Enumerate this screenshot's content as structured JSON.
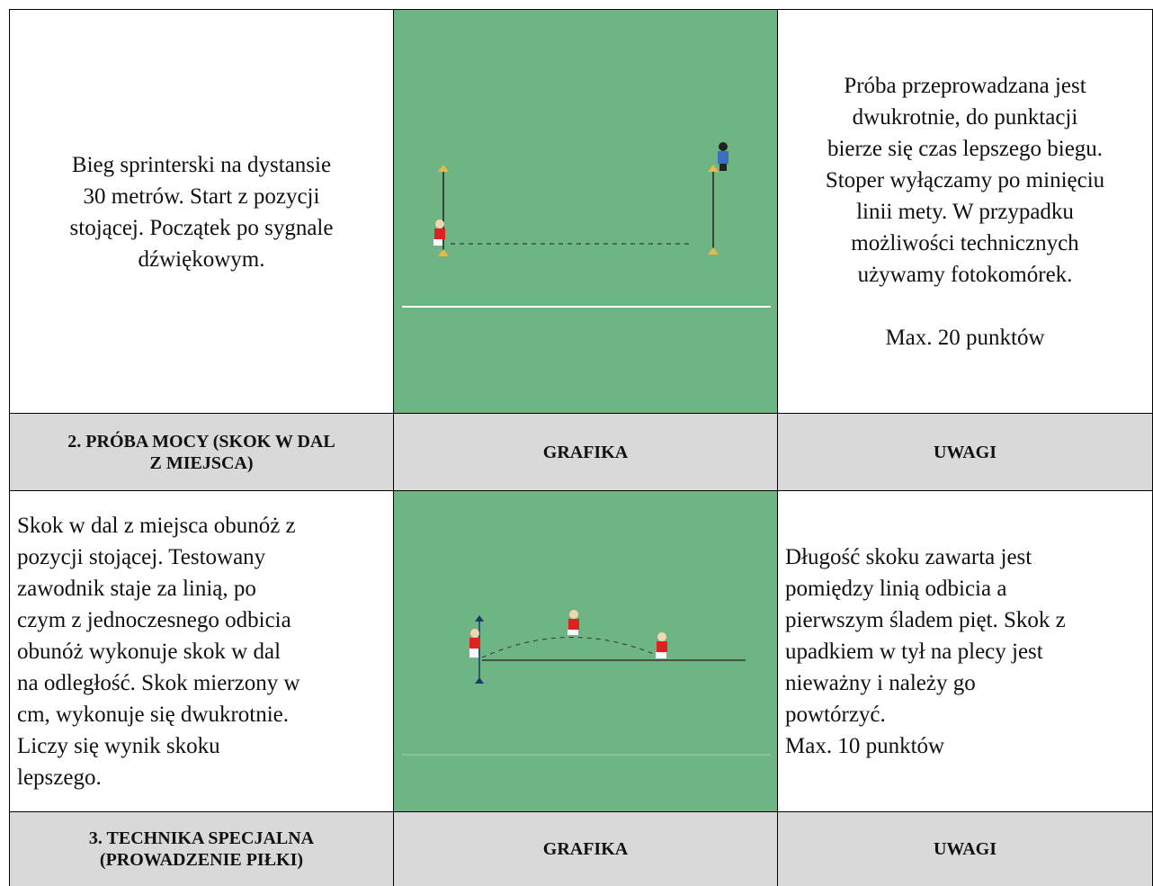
{
  "table": {
    "rows": [
      {
        "description": [
          "Bieg sprinterski na dystansie",
          "30 metrów. Start z pozycji",
          "stojącej. Początek po sygnale",
          "dźwiękowym."
        ],
        "notes": [
          "Próba przeprowadzana jest",
          "dwukrotnie, do punktacji",
          "bierze się czas lepszego biegu.",
          "Stoper wyłączamy po minięciu",
          "linii mety. W przypadku",
          "możliwości technicznych",
          "używamy fotokomórek."
        ],
        "points": "Max. 20 punktów"
      },
      {
        "title": [
          "2. PRÓBA MOCY (SKOK W DAL",
          "Z MIEJSCA)"
        ],
        "graphic": "GRAFIKA",
        "notes": "UWAGI"
      },
      {
        "description": [
          "Skok w dal z miejsca obunóż z",
          "pozycji stojącej. Testowany",
          "zawodnik staje za linią, po",
          "czym z jednoczesnego odbicia",
          "obunóż wykonuje skok w dal",
          "na odległość. Skok mierzony w",
          "cm, wykonuje się dwukrotnie.",
          "Liczy się wynik skoku",
          "lepszego."
        ],
        "notes": [
          "Długość skoku zawarta jest",
          "pomiędzy linią odbicia a",
          "pierwszym śladem pięt. Skok z",
          "upadkiem w tył na plecy jest",
          "nieważny i należy go",
          "powtórzyć."
        ],
        "points": "Max. 10 punktów"
      },
      {
        "title": [
          "3. TECHNIKA SPECJALNA",
          "(PROWADZENIE PIŁKI)"
        ],
        "graphic": "GRAFIKA",
        "notes": "UWAGI"
      }
    ]
  }
}
